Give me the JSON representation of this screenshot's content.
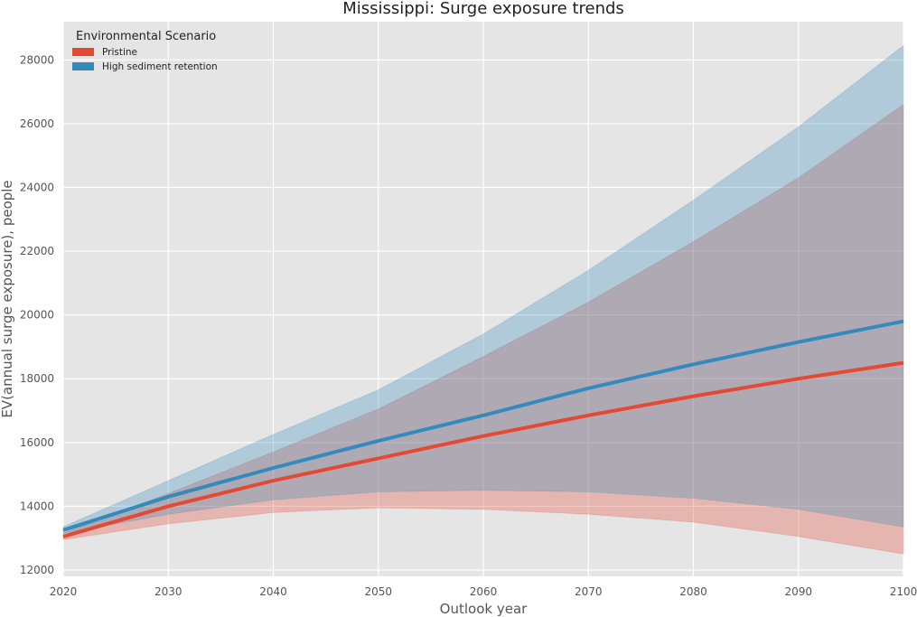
{
  "chart_data": {
    "type": "line",
    "title": "Mississippi: Surge exposure trends",
    "xlabel": "Outlook year",
    "ylabel": "EV(annual surge exposure), people",
    "xlim": [
      2020,
      2100
    ],
    "ylim": [
      11800,
      29200
    ],
    "x_ticks": [
      2020,
      2030,
      2040,
      2050,
      2060,
      2070,
      2080,
      2090,
      2100
    ],
    "y_ticks": [
      12000,
      14000,
      16000,
      18000,
      20000,
      22000,
      24000,
      26000,
      28000
    ],
    "grid": true,
    "legend": {
      "title": "Environmental Scenario",
      "placement": "top-left"
    },
    "x": [
      2020,
      2030,
      2040,
      2050,
      2060,
      2070,
      2080,
      2090,
      2100
    ],
    "series": [
      {
        "name": "Pristine",
        "color": "#E24A33",
        "values": [
          13050,
          14000,
          14800,
          15500,
          16200,
          16850,
          17450,
          18000,
          18500
        ],
        "lower": [
          12950,
          13450,
          13800,
          13950,
          13900,
          13750,
          13500,
          13050,
          12500
        ],
        "upper": [
          13150,
          14400,
          15700,
          17050,
          18700,
          20400,
          22300,
          24300,
          26600
        ]
      },
      {
        "name": "High sediment retention",
        "color": "#348ABD",
        "values": [
          13250,
          14300,
          15200,
          16050,
          16850,
          17700,
          18450,
          19150,
          19800
        ],
        "lower": [
          13150,
          13750,
          14200,
          14450,
          14500,
          14450,
          14250,
          13900,
          13350
        ],
        "upper": [
          13350,
          14800,
          16250,
          17650,
          19400,
          21400,
          23600,
          25900,
          28450
        ]
      }
    ]
  }
}
